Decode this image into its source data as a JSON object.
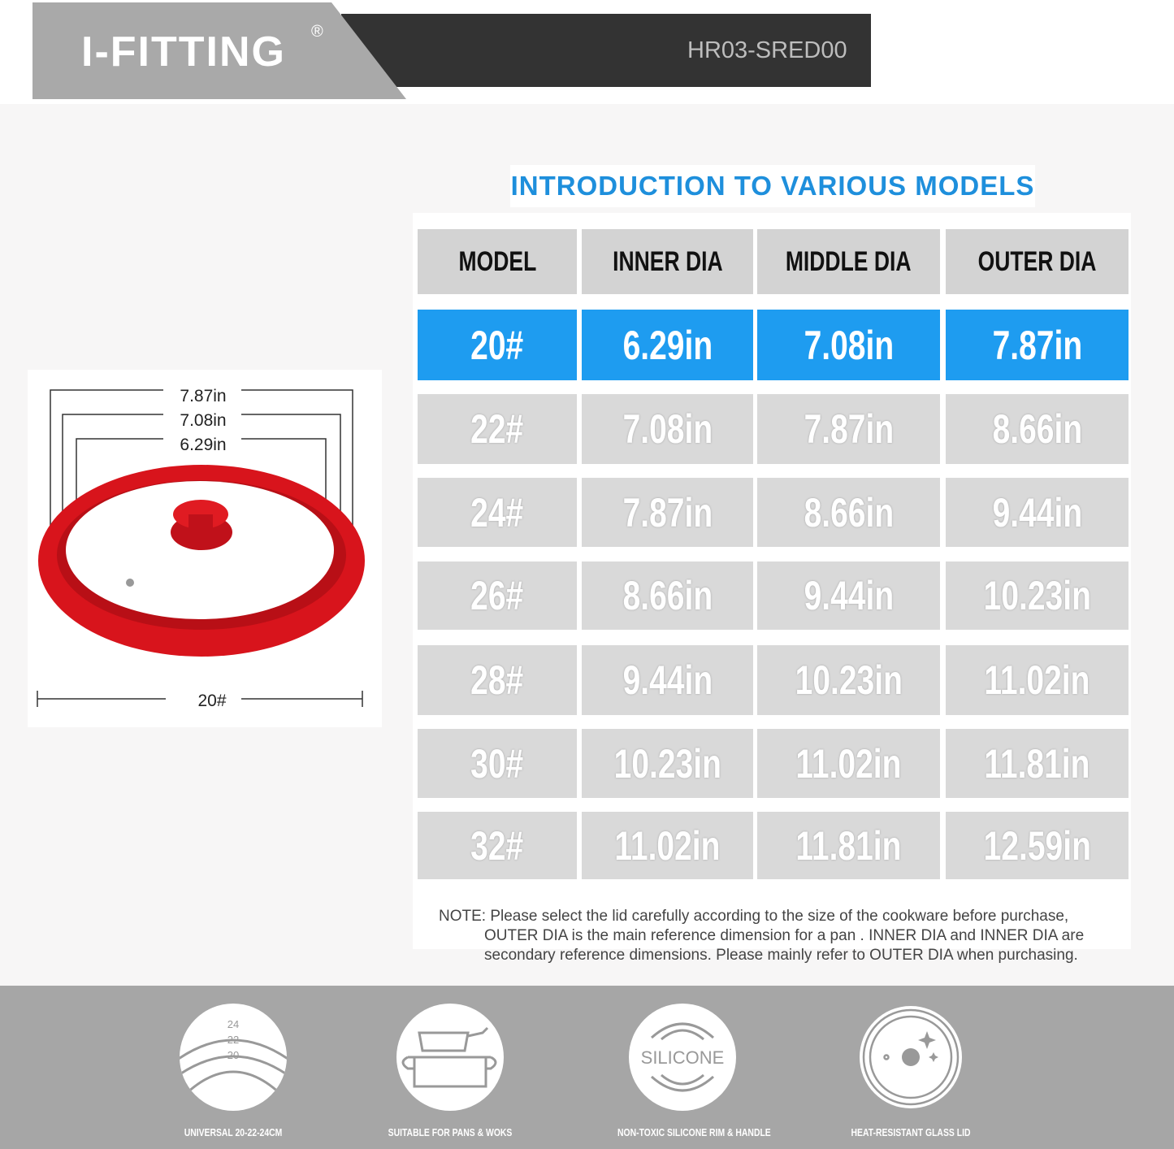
{
  "header": {
    "brand": "I-FITTING",
    "registered": "®",
    "model_code": "HR03-SRED00"
  },
  "title": "INTRODUCTION TO VARIOUS MODELS",
  "table": {
    "columns": [
      "MODEL",
      "INNER DIA",
      "MIDDLE DIA",
      "OUTER DIA"
    ],
    "rows": [
      [
        "20#",
        "6.29in",
        "7.08in",
        "7.87in"
      ],
      [
        "22#",
        "7.08in",
        "7.87in",
        "8.66in"
      ],
      [
        "24#",
        "7.87in",
        "8.66in",
        "9.44in"
      ],
      [
        "26#",
        "8.66in",
        "9.44in",
        "10.23in"
      ],
      [
        "28#",
        "9.44in",
        "10.23in",
        "11.02in"
      ],
      [
        "30#",
        "10.23in",
        "11.02in",
        "11.81in"
      ],
      [
        "32#",
        "11.02in",
        "11.81in",
        "12.59in"
      ]
    ],
    "highlight_row": 0,
    "highlight_color": "#1e9cf0"
  },
  "note": {
    "label": "NOTE:",
    "line1": "Please  select the lid carefully according to the size of the cookware before purchase,",
    "line2": "OUTER DIA  is the main reference dimension for  a pan .  INNER DIA  and  INNER DIA  are",
    "line3": "secondary reference dimensions. Please mainly refer to OUTER DIA when purchasing."
  },
  "diagram": {
    "outer": "7.87in",
    "middle": "7.08in",
    "inner": "6.29in",
    "size": "20#",
    "lid_color": "#d8141c"
  },
  "features": [
    {
      "label": "UNIVERSAL 20-22-24CM",
      "icon": "size-arcs-icon",
      "numbers": [
        "24",
        "22",
        "20"
      ]
    },
    {
      "label": "SUITABLE FOR PANS & WOKS",
      "icon": "pan-pot-icon"
    },
    {
      "label": "NON-TOXIC SILICONE RIM & HANDLE",
      "icon": "silicone-icon",
      "text": "SILICONE"
    },
    {
      "label": "HEAT-RESISTANT GLASS LID",
      "icon": "glass-lid-icon"
    }
  ]
}
